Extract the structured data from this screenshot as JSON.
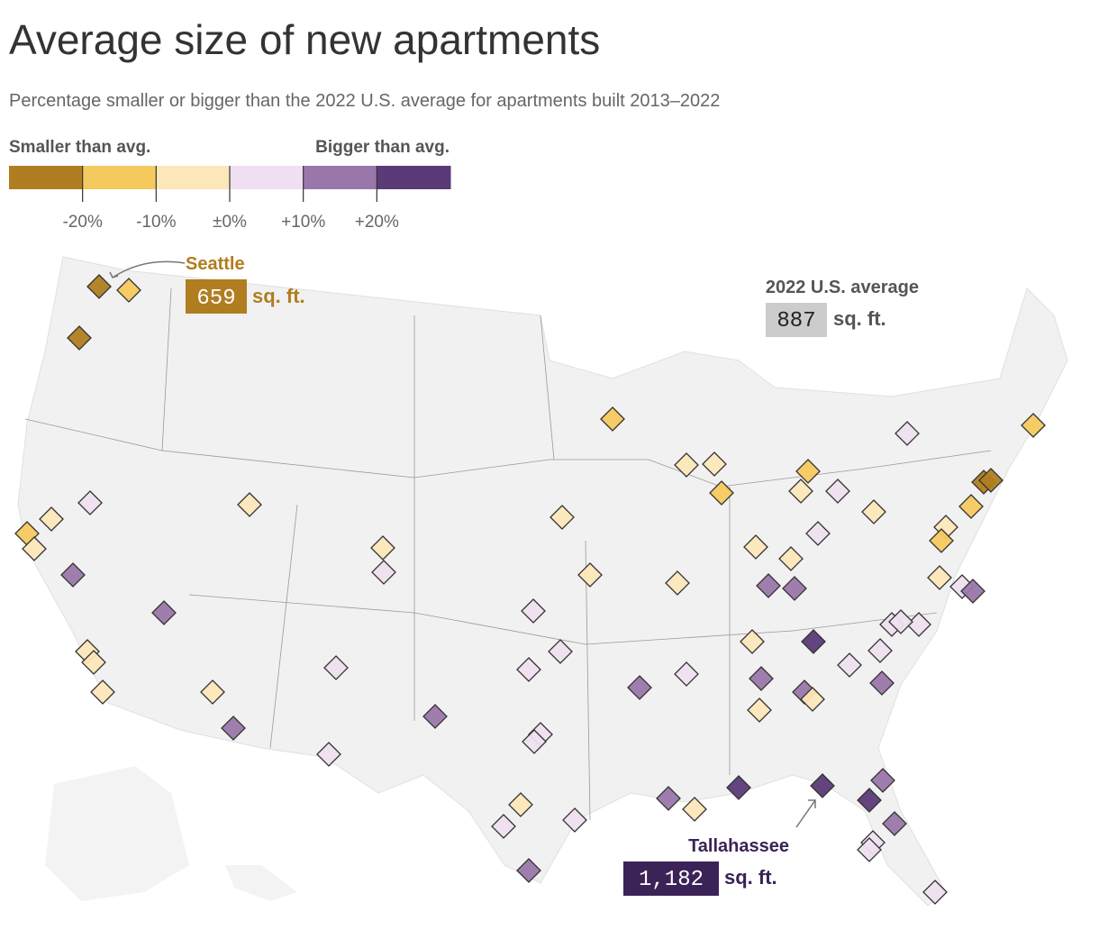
{
  "title": "Average size of new apartments",
  "subtitle": "Percentage smaller or bigger than the 2022 U.S. average for apartments built 2013–2022",
  "legend": {
    "left_label": "Smaller than avg.",
    "right_label": "Bigger than avg.",
    "colors": [
      "#b07d20",
      "#f4c95d",
      "#fde6b8",
      "#efdff0",
      "#9a77aa",
      "#5b3a78"
    ],
    "range": [
      -30,
      30
    ],
    "ticks": [
      {
        "value": -20,
        "label": "-20%"
      },
      {
        "value": -10,
        "label": "-10%"
      },
      {
        "value": 0,
        "label": "±0%"
      },
      {
        "value": 10,
        "label": "+10%"
      },
      {
        "value": 20,
        "label": "+20%"
      }
    ]
  },
  "annotations": {
    "seattle": {
      "label": "Seattle",
      "value": 659,
      "unit": "sq. ft."
    },
    "average": {
      "label": "2022 U.S. average",
      "value": 887,
      "unit": "sq. ft."
    },
    "tallahassee": {
      "label": "Tallahassee",
      "value": 1182,
      "value_label": "1,182",
      "unit": "sq. ft."
    }
  }
}
